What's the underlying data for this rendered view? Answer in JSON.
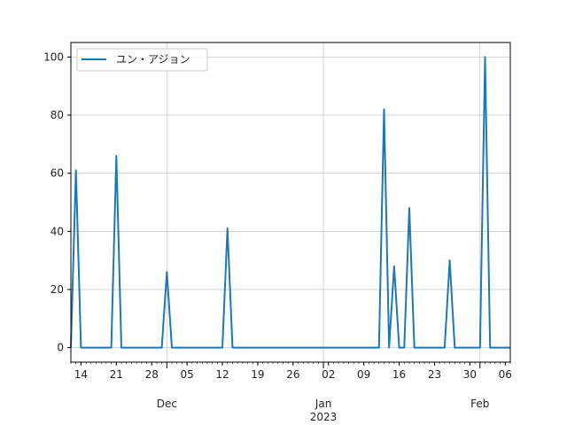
{
  "chart_data": {
    "type": "line",
    "title": "",
    "xlabel": "",
    "ylabel": "",
    "x_range": [
      "2022-11-12",
      "2023-02-07"
    ],
    "ylim": [
      -5,
      105
    ],
    "grid": true,
    "legend": {
      "placement": "top-left",
      "entries": [
        "ユン・アジョン"
      ]
    },
    "colors": {
      "line": "#1f77b4",
      "grid": "#cccccc",
      "axis": "#000000"
    },
    "y_ticks": [
      0,
      20,
      40,
      60,
      80,
      100
    ],
    "x_ticks": [
      {
        "date": "2022-11-14",
        "label": "14"
      },
      {
        "date": "2022-11-21",
        "label": "21"
      },
      {
        "date": "2022-11-28",
        "label": "28"
      },
      {
        "date": "2022-12-05",
        "label": "05"
      },
      {
        "date": "2022-12-12",
        "label": "12"
      },
      {
        "date": "2022-12-19",
        "label": "19"
      },
      {
        "date": "2022-12-26",
        "label": "26"
      },
      {
        "date": "2023-01-02",
        "label": "02"
      },
      {
        "date": "2023-01-09",
        "label": "09"
      },
      {
        "date": "2023-01-16",
        "label": "16"
      },
      {
        "date": "2023-01-23",
        "label": "23"
      },
      {
        "date": "2023-01-30",
        "label": "30"
      },
      {
        "date": "2023-02-06",
        "label": "06"
      }
    ],
    "month_ticks": [
      {
        "date": "2022-12-01",
        "label": "Dec"
      },
      {
        "date": "2023-01-01",
        "label": "Jan",
        "sublabel": "2023"
      },
      {
        "date": "2023-02-01",
        "label": "Feb"
      }
    ],
    "series": [
      {
        "name": "ユン・アジョン",
        "x": [
          "2022-11-12",
          "2022-11-13",
          "2022-11-14",
          "2022-11-20",
          "2022-11-21",
          "2022-11-22",
          "2022-11-30",
          "2022-12-01",
          "2022-12-02",
          "2022-12-12",
          "2022-12-13",
          "2022-12-14",
          "2023-01-12",
          "2023-01-13",
          "2023-01-14",
          "2023-01-15",
          "2023-01-16",
          "2023-01-17",
          "2023-01-18",
          "2023-01-19",
          "2023-01-25",
          "2023-01-26",
          "2023-01-27",
          "2023-02-01",
          "2023-02-02",
          "2023-02-03",
          "2023-02-07"
        ],
        "y": [
          0,
          61,
          0,
          0,
          66,
          0,
          0,
          26,
          0,
          0,
          41,
          0,
          0,
          82,
          0,
          28,
          0,
          0,
          48,
          0,
          0,
          30,
          0,
          0,
          100,
          0,
          0
        ]
      }
    ]
  }
}
